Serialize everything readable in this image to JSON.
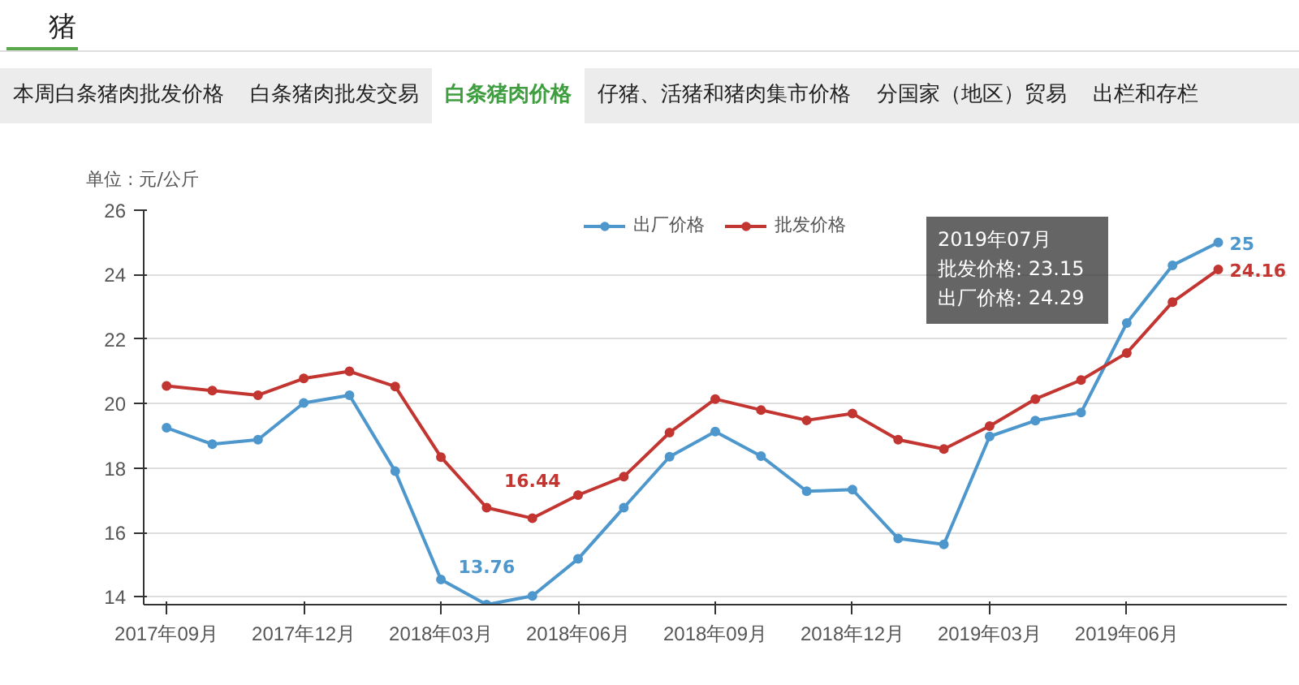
{
  "chart_data": {
    "type": "line",
    "title": "猪",
    "ylabel": "单位 : 元/公斤",
    "categories": [
      "2017年09月",
      null,
      null,
      "2017年12月",
      null,
      null,
      "2018年03月",
      null,
      null,
      "2018年06月",
      null,
      null,
      "2018年09月",
      null,
      null,
      "2018年12月",
      null,
      null,
      "2019年03月",
      null,
      null,
      "2019年06月",
      null,
      null
    ],
    "ylim": [
      13.76,
      26
    ],
    "yticks": [
      14,
      16,
      18,
      20,
      22,
      24,
      26
    ],
    "grid": "y",
    "legend": "top",
    "marker": "circle",
    "line_style": "solid",
    "series": [
      {
        "name": "出厂价格",
        "color": "#4d97cd",
        "values": [
          19.25,
          18.74,
          18.88,
          20.02,
          20.26,
          17.9,
          14.54,
          13.76,
          14.03,
          15.18,
          16.77,
          18.35,
          19.13,
          18.37,
          17.28,
          17.33,
          15.81,
          15.63,
          18.98,
          19.47,
          19.72,
          22.5,
          24.29,
          25
        ],
        "value_labels": [
          null,
          null,
          null,
          null,
          null,
          null,
          null,
          "13.76",
          null,
          null,
          null,
          null,
          null,
          null,
          null,
          null,
          null,
          null,
          null,
          null,
          null,
          null,
          null,
          "25"
        ]
      },
      {
        "name": "批发价格",
        "color": "#c23531",
        "values": [
          20.55,
          20.4,
          20.26,
          20.78,
          21.0,
          20.53,
          18.34,
          16.77,
          16.44,
          17.16,
          17.73,
          19.1,
          20.14,
          19.8,
          19.48,
          19.69,
          18.88,
          18.59,
          19.3,
          20.14,
          20.73,
          21.57,
          23.15,
          24.16
        ],
        "value_labels": [
          null,
          null,
          null,
          null,
          null,
          null,
          null,
          null,
          "16.44",
          null,
          null,
          null,
          null,
          null,
          null,
          null,
          null,
          null,
          null,
          null,
          null,
          null,
          null,
          "24.16"
        ]
      }
    ],
    "annotations": [
      "本周白条猪肉批发价格",
      "白条猪肉批发交易",
      "白条猪肉价格",
      "仔猪、活猪和猪肉集市价格",
      "分国家（地区）贸易",
      "出栏和存栏",
      "2019年07月",
      "批发价格: 23.15",
      "出厂价格: 24.29"
    ]
  }
}
